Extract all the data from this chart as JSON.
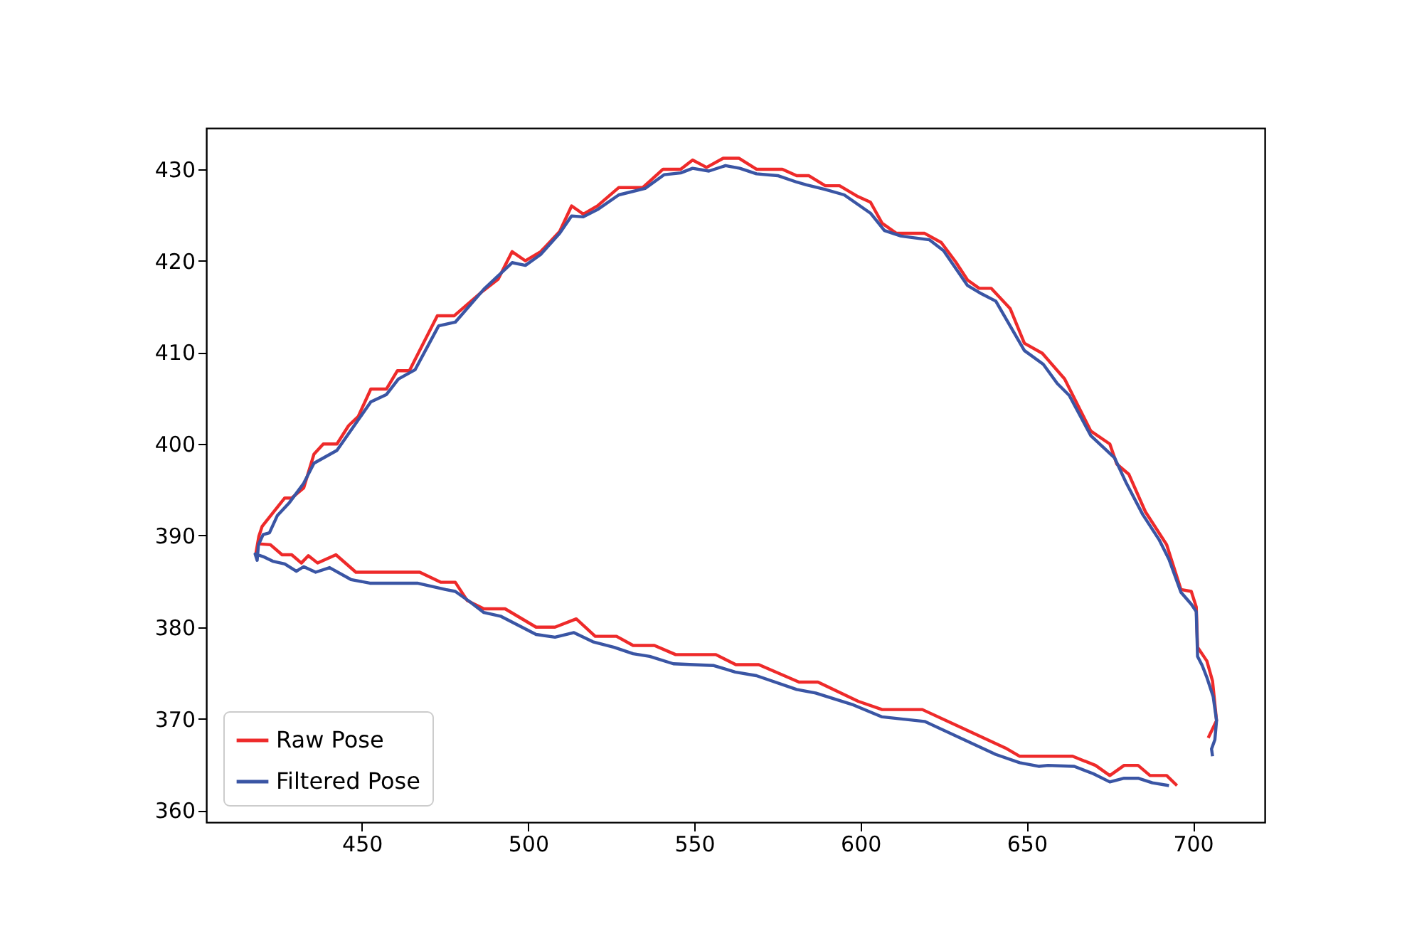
{
  "chart_data": {
    "type": "line",
    "xlim": [
      403.2,
      721.6
    ],
    "ylim": [
      358.7,
      434.5
    ],
    "xticks": [
      450,
      500,
      550,
      600,
      650,
      700
    ],
    "yticks": [
      360,
      370,
      380,
      390,
      400,
      410,
      420,
      430
    ],
    "grid": false,
    "legend": "bottom left",
    "line_style": "solid",
    "series": [
      {
        "name": "Raw Pose",
        "color": "#ee2a2a",
        "x": [
          695.2,
          692.1,
          687.1,
          683.5,
          679.3,
          675.0,
          670.7,
          663.8,
          657.8,
          647.9,
          643.6,
          618.6,
          606.5,
          599.3,
          587.2,
          581.5,
          569.4,
          562.5,
          556.5,
          544.4,
          538.0,
          531.6,
          526.6,
          520.2,
          514.5,
          508.1,
          502.4,
          493.1,
          486.7,
          481.7,
          478.1,
          473.8,
          467.4,
          448.2,
          442.2,
          436.7,
          433.9,
          431.8,
          428.9,
          426.0,
          422.5,
          418.9,
          418.2,
          419.0,
          420.0,
          422.2,
          426.8,
          428.9,
          432.5,
          435.6,
          438.4,
          442.5,
          446.0,
          448.9,
          452.7,
          457.4,
          460.7,
          464.3,
          472.7,
          477.8,
          486.4,
          491.0,
          495.2,
          499.2,
          503.8,
          509.5,
          513.1,
          516.6,
          520.9,
          527.3,
          534.5,
          540.6,
          545.9,
          549.5,
          553.7,
          558.7,
          563.4,
          568.7,
          576.5,
          580.8,
          584.4,
          589.4,
          593.7,
          599.3,
          603.0,
          606.5,
          610.8,
          619.3,
          624.3,
          628.6,
          632.2,
          635.7,
          639.3,
          645.0,
          649.3,
          654.7,
          661.4,
          669.3,
          675.0,
          677.1,
          680.7,
          685.7,
          692.1,
          696.4,
          699.5,
          701.0,
          701.4,
          704.2,
          705.9,
          707.1,
          704.6
        ],
        "values": [
          362.7,
          363.8,
          363.8,
          364.9,
          364.9,
          363.8,
          364.9,
          365.9,
          365.9,
          365.9,
          366.8,
          371.0,
          371.0,
          371.9,
          374.0,
          374.0,
          375.9,
          375.9,
          377.0,
          377.0,
          378.0,
          378.0,
          379.0,
          379.0,
          380.9,
          380.0,
          380.0,
          382.0,
          382.0,
          382.9,
          384.9,
          384.9,
          386.0,
          386.0,
          387.9,
          387.0,
          387.8,
          387.0,
          387.9,
          387.9,
          389.0,
          389.1,
          388.2,
          389.9,
          391.0,
          392.0,
          394.1,
          394.1,
          395.2,
          398.9,
          400.0,
          400.0,
          402.0,
          403.0,
          406.0,
          406.0,
          408.0,
          408.0,
          414.0,
          414.0,
          416.7,
          418.0,
          421.0,
          420.0,
          421.0,
          423.2,
          426.0,
          425.1,
          426.0,
          428.0,
          428.0,
          430.0,
          430.0,
          431.0,
          430.2,
          431.2,
          431.2,
          430.0,
          430.0,
          429.3,
          429.3,
          428.2,
          428.2,
          427.0,
          426.4,
          424.1,
          423.0,
          423.0,
          422.0,
          419.9,
          417.9,
          417.0,
          417.0,
          414.8,
          411.0,
          409.9,
          407.1,
          401.4,
          400.0,
          397.8,
          396.7,
          392.6,
          389.0,
          384.1,
          383.9,
          382.2,
          377.8,
          376.3,
          374.1,
          369.8,
          367.9
        ]
      },
      {
        "name": "Filtered Pose",
        "color": "#3a55a4",
        "x": [
          692.8,
          687.8,
          683.5,
          679.3,
          675.0,
          670.0,
          664.3,
          656.4,
          653.6,
          647.9,
          640.7,
          619.3,
          606.5,
          597.9,
          586.5,
          580.8,
          568.7,
          562.3,
          555.9,
          543.7,
          536.6,
          531.6,
          525.9,
          519.5,
          513.8,
          508.1,
          502.4,
          491.7,
          486.7,
          482.4,
          478.1,
          475.2,
          466.7,
          452.4,
          446.7,
          440.3,
          436.1,
          432.5,
          430.3,
          426.8,
          423.2,
          420.3,
          417.9,
          418.5,
          418.9,
          420.3,
          422.2,
          424.6,
          428.2,
          432.5,
          435.6,
          442.5,
          452.7,
          457.4,
          461.0,
          466.0,
          473.1,
          478.1,
          486.7,
          495.2,
          499.2,
          503.8,
          509.5,
          513.1,
          516.6,
          520.9,
          527.3,
          535.2,
          540.9,
          545.9,
          549.5,
          554.4,
          559.4,
          563.7,
          568.7,
          575.1,
          580.8,
          583.7,
          589.4,
          595.1,
          603.0,
          607.2,
          612.2,
          620.7,
          625.0,
          632.2,
          636.4,
          640.7,
          649.3,
          655.0,
          659.2,
          662.8,
          669.3,
          676.4,
          680.0,
          684.9,
          689.9,
          692.8,
          696.4,
          699.5,
          701.0,
          701.4,
          702.8,
          704.2,
          706.1,
          707.1,
          706.6,
          705.6,
          705.9
        ],
        "values": [
          362.7,
          363.0,
          363.5,
          363.5,
          363.1,
          364.0,
          364.8,
          364.9,
          364.8,
          365.2,
          366.1,
          369.7,
          370.2,
          371.5,
          372.8,
          373.2,
          374.7,
          375.1,
          375.8,
          376.0,
          376.8,
          377.1,
          377.8,
          378.4,
          379.4,
          378.9,
          379.2,
          381.2,
          381.6,
          382.8,
          383.9,
          384.1,
          384.8,
          384.8,
          385.2,
          386.5,
          386.0,
          386.6,
          386.1,
          386.9,
          387.2,
          387.7,
          388.0,
          387.3,
          389.0,
          390.1,
          390.3,
          392.2,
          393.6,
          395.7,
          397.9,
          399.3,
          404.6,
          405.4,
          407.1,
          408.1,
          412.9,
          413.3,
          416.9,
          419.8,
          419.5,
          420.7,
          423.0,
          424.9,
          424.8,
          425.6,
          427.2,
          427.9,
          429.4,
          429.6,
          430.1,
          429.8,
          430.4,
          430.1,
          429.5,
          429.3,
          428.6,
          428.3,
          427.8,
          427.2,
          425.2,
          423.3,
          422.7,
          422.3,
          421.1,
          417.3,
          416.4,
          415.6,
          410.2,
          408.7,
          406.6,
          405.3,
          400.9,
          398.5,
          395.7,
          392.3,
          389.5,
          387.4,
          383.8,
          382.5,
          381.7,
          376.8,
          375.8,
          374.5,
          372.4,
          369.8,
          367.7,
          366.7,
          365.9
        ]
      }
    ]
  }
}
